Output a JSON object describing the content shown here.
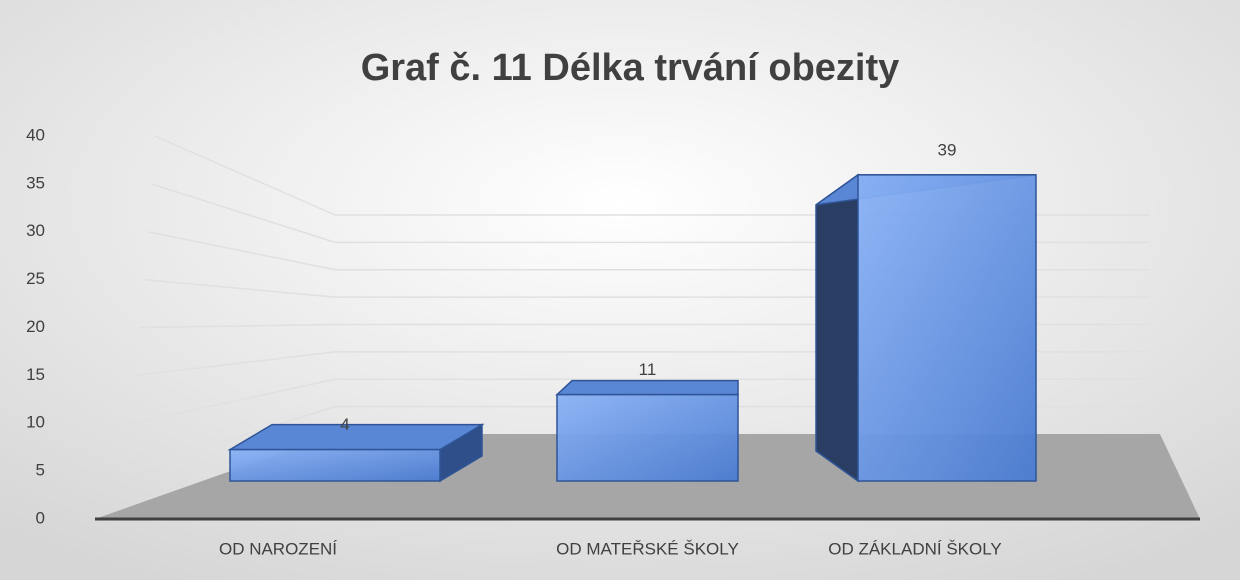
{
  "chart_data": {
    "type": "bar",
    "title": "Graf č. 11 Délka trvání obezity",
    "categories": [
      "OD NAROZENÍ",
      "OD MATEŘSKÉ ŠKOLY",
      "OD ZÁKLADNÍ ŠKOLY"
    ],
    "values": [
      4,
      11,
      39
    ],
    "color": "#4a7bd1",
    "ylim": [
      0,
      40
    ],
    "yticks": [
      0,
      5,
      10,
      15,
      20,
      25,
      30,
      35,
      40
    ],
    "grid": true
  }
}
